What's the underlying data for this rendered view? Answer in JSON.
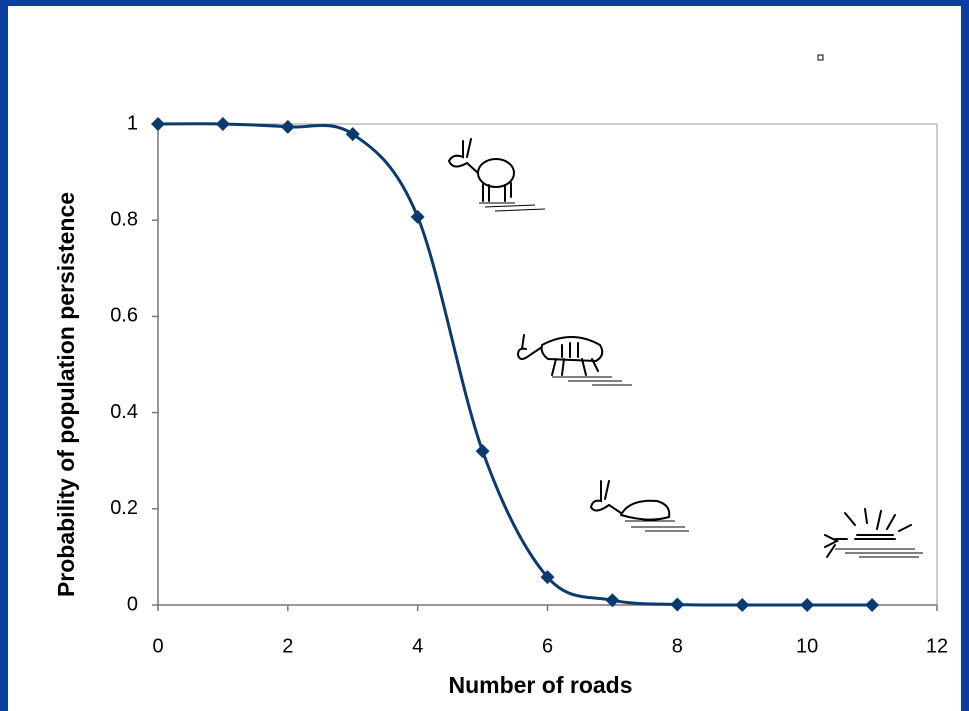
{
  "chart_data": {
    "type": "line",
    "x": [
      0,
      1,
      2,
      3,
      4,
      5,
      6,
      7,
      8,
      9,
      10,
      11
    ],
    "series": [
      {
        "color": "#0b3a6e",
        "values": [
          1,
          1,
          0.994,
          0.979,
          0.807,
          0.32,
          0.058,
          0.01,
          0.001,
          0,
          0,
          0
        ]
      }
    ],
    "xlim": [
      0,
      12
    ],
    "xticks": [
      0,
      2,
      4,
      6,
      8,
      10,
      12
    ],
    "ylim": [
      0,
      1
    ],
    "yticks": [
      0,
      0.2,
      0.4,
      0.6,
      0.8,
      1
    ],
    "xlabel": "Number of roads",
    "ylabel": "Probability of population persistence",
    "smooth": true
  }
}
